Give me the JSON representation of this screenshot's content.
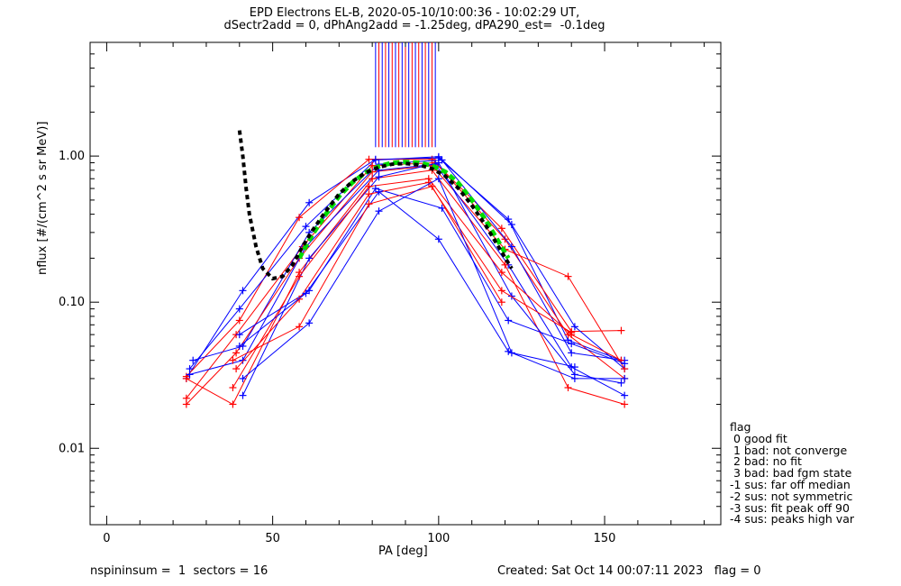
{
  "title_line1": "EPD Electrons EL-B, 2020-05-10/10:00:36 - 10:02:29 UT,",
  "title_line2": "dSectr2add = 0, dPhAng2add = -1.25deg, dPA290_est=  -0.1deg",
  "footer_left": "nspininsum =  1  sectors = 16",
  "footer_right": "Created: Sat Oct 14 00:07:11 2023   flag = 0",
  "flag_legend": {
    "title": "flag",
    "entries": [
      " 0 good fit",
      " 1 bad: not converge",
      " 2 bad: no fit",
      " 3 bad: bad fgm state",
      "-1 sus: far off median",
      "-2 sus: not symmetric",
      "-3 sus: fit peak off 90",
      "-4 sus: peaks high var"
    ]
  },
  "colors": {
    "blue": "#0000ff",
    "red": "#ff0000",
    "fit_green": "#00dd00",
    "model_black": "#000000"
  },
  "chart_data": {
    "type": "line",
    "xlabel": "PA [deg]",
    "ylabel": "nflux [#/(cm^2 s sr MeV)]",
    "xlim": [
      -5,
      185
    ],
    "ylim": [
      0.003,
      6
    ],
    "yscale": "log",
    "x_ticks": [
      0,
      50,
      100,
      150
    ],
    "y_ticks": [
      0.01,
      0.1,
      1.0
    ],
    "y_tick_labels": [
      "0.01",
      "0.10",
      "1.00"
    ],
    "pa_lines": [
      {
        "x": 81,
        "color": "blue"
      },
      {
        "x": 82,
        "color": "red"
      },
      {
        "x": 83,
        "color": "blue"
      },
      {
        "x": 84,
        "color": "red"
      },
      {
        "x": 85,
        "color": "blue"
      },
      {
        "x": 86,
        "color": "red"
      },
      {
        "x": 87,
        "color": "blue"
      },
      {
        "x": 88,
        "color": "red"
      },
      {
        "x": 89,
        "color": "blue"
      },
      {
        "x": 90,
        "color": "red"
      },
      {
        "x": 91,
        "color": "blue"
      },
      {
        "x": 92,
        "color": "red"
      },
      {
        "x": 93,
        "color": "blue"
      },
      {
        "x": 94,
        "color": "red"
      },
      {
        "x": 95,
        "color": "blue"
      },
      {
        "x": 96,
        "color": "red"
      },
      {
        "x": 97,
        "color": "blue"
      },
      {
        "x": 98,
        "color": "red"
      },
      {
        "x": 99,
        "color": "blue"
      }
    ],
    "series": [
      {
        "color": "blue",
        "points": [
          [
            24,
            0.03
          ],
          [
            41,
            0.12
          ],
          [
            61,
            0.48
          ],
          [
            81,
            0.95
          ],
          [
            100,
            0.97
          ],
          [
            121,
            0.37
          ],
          [
            139,
            0.055
          ],
          [
            155,
            0.04
          ]
        ]
      },
      {
        "color": "red",
        "points": [
          [
            24,
            0.031
          ],
          [
            40,
            0.075
          ],
          [
            58,
            0.38
          ],
          [
            79,
            0.95
          ],
          [
            98,
            0.95
          ],
          [
            119,
            0.32
          ],
          [
            140,
            0.063
          ],
          [
            155,
            0.064
          ]
        ]
      },
      {
        "color": "blue",
        "points": [
          [
            25,
            0.035
          ],
          [
            40,
            0.09
          ],
          [
            60,
            0.33
          ],
          [
            81,
            0.94
          ],
          [
            100,
            0.99
          ],
          [
            122,
            0.34
          ],
          [
            141,
            0.068
          ],
          [
            156,
            0.035
          ]
        ]
      },
      {
        "color": "red",
        "points": [
          [
            24,
            0.022
          ],
          [
            39,
            0.06
          ],
          [
            59,
            0.24
          ],
          [
            80,
            0.86
          ],
          [
            99,
            0.9
          ],
          [
            120,
            0.27
          ],
          [
            139,
            0.06
          ],
          [
            156,
            0.03
          ]
        ]
      },
      {
        "color": "blue",
        "points": [
          [
            26,
            0.04
          ],
          [
            41,
            0.05
          ],
          [
            61,
            0.3
          ],
          [
            82,
            0.88
          ],
          [
            101,
            0.94
          ],
          [
            122,
            0.24
          ],
          [
            140,
            0.045
          ],
          [
            156,
            0.04
          ]
        ]
      },
      {
        "color": "red",
        "points": [
          [
            24,
            0.02
          ],
          [
            39,
            0.045
          ],
          [
            58,
            0.2
          ],
          [
            80,
            0.78
          ],
          [
            98,
            0.86
          ],
          [
            120,
            0.23
          ],
          [
            139,
            0.15
          ],
          [
            156,
            0.035
          ]
        ]
      },
      {
        "color": "blue",
        "points": [
          [
            25,
            0.032
          ],
          [
            41,
            0.04
          ],
          [
            60,
            0.24
          ],
          [
            82,
            0.8
          ],
          [
            99,
            0.88
          ],
          [
            121,
            0.18
          ],
          [
            140,
            0.036
          ],
          [
            156,
            0.023
          ]
        ]
      },
      {
        "color": "red",
        "points": [
          [
            24,
            0.03
          ],
          [
            38,
            0.02
          ],
          [
            58,
            0.16
          ],
          [
            80,
            0.7
          ],
          [
            98,
            0.8
          ],
          [
            120,
            0.18
          ],
          [
            139,
            0.026
          ],
          [
            156,
            0.02
          ]
        ]
      },
      {
        "color": "blue",
        "points": [
          [
            41,
            0.023
          ],
          [
            61,
            0.2
          ],
          [
            82,
            0.72
          ],
          [
            100,
            0.9
          ],
          [
            122,
            0.11
          ],
          [
            141,
            0.032
          ],
          [
            155,
            0.028
          ]
        ]
      },
      {
        "color": "red",
        "points": [
          [
            38,
            0.026
          ],
          [
            58,
            0.15
          ],
          [
            79,
            0.62
          ],
          [
            97,
            0.7
          ],
          [
            119,
            0.16
          ],
          [
            140,
            0.06
          ],
          [
            155,
            0.04
          ]
        ]
      },
      {
        "color": "blue",
        "points": [
          [
            40,
            0.06
          ],
          [
            61,
            0.12
          ],
          [
            81,
            0.6
          ],
          [
            101,
            0.44
          ],
          [
            121,
            0.075
          ],
          [
            140,
            0.052
          ],
          [
            156,
            0.038
          ]
        ]
      },
      {
        "color": "red",
        "points": [
          [
            39,
            0.035
          ],
          [
            58,
            0.105
          ],
          [
            79,
            0.55
          ],
          [
            97,
            0.66
          ],
          [
            119,
            0.12
          ],
          [
            140,
            0.062
          ]
        ]
      },
      {
        "color": "blue",
        "points": [
          [
            40,
            0.05
          ],
          [
            60,
            0.115
          ],
          [
            82,
            0.57
          ],
          [
            100,
            0.27
          ],
          [
            121,
            0.046
          ],
          [
            141,
            0.03
          ],
          [
            156,
            0.03
          ]
        ]
      },
      {
        "color": "red",
        "points": [
          [
            38,
            0.04
          ],
          [
            58,
            0.068
          ],
          [
            79,
            0.47
          ],
          [
            98,
            0.62
          ],
          [
            119,
            0.1
          ]
        ]
      },
      {
        "color": "blue",
        "points": [
          [
            41,
            0.03
          ],
          [
            61,
            0.072
          ],
          [
            82,
            0.42
          ],
          [
            100,
            0.7
          ],
          [
            122,
            0.045
          ],
          [
            141,
            0.036
          ]
        ]
      }
    ],
    "fit_curve": {
      "color": "fit_green",
      "x": [
        58,
        62,
        66,
        70,
        74,
        78,
        82,
        86,
        90,
        94,
        98,
        102,
        106,
        110,
        114,
        118,
        121
      ],
      "y": [
        0.2,
        0.29,
        0.4,
        0.53,
        0.66,
        0.77,
        0.85,
        0.9,
        0.91,
        0.9,
        0.86,
        0.78,
        0.65,
        0.5,
        0.37,
        0.26,
        0.2
      ]
    },
    "model_curve": {
      "color": "model_black",
      "x": [
        40,
        41,
        42,
        43,
        45,
        47,
        50,
        53,
        56,
        59,
        62,
        66,
        70,
        74,
        78,
        82,
        86,
        90,
        94,
        98,
        102,
        106,
        110,
        114,
        118,
        122
      ],
      "y": [
        1.5,
        1.0,
        0.6,
        0.4,
        0.24,
        0.17,
        0.145,
        0.15,
        0.18,
        0.24,
        0.31,
        0.42,
        0.55,
        0.67,
        0.77,
        0.84,
        0.88,
        0.89,
        0.87,
        0.82,
        0.73,
        0.6,
        0.46,
        0.34,
        0.24,
        0.17
      ]
    }
  }
}
